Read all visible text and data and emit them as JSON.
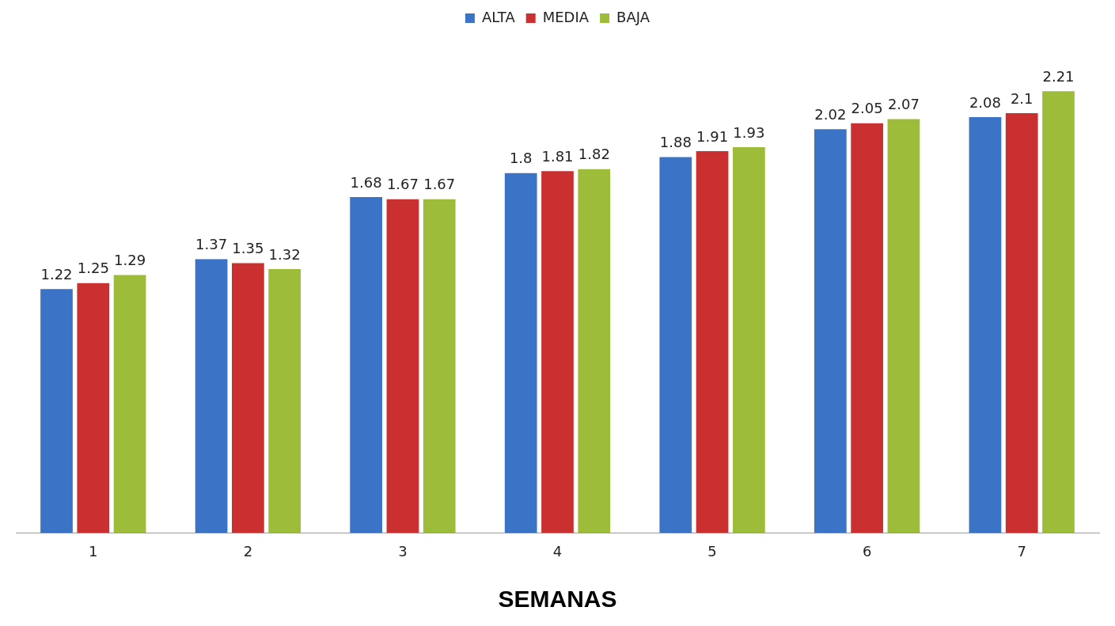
{
  "chart_data": {
    "type": "bar",
    "xlabel": "SEMANAS",
    "categories": [
      "1",
      "2",
      "3",
      "4",
      "5",
      "6",
      "7"
    ],
    "series": [
      {
        "name": "ALTA",
        "color": "#3b74c6",
        "values": [
          1.22,
          1.37,
          1.68,
          1.8,
          1.88,
          2.02,
          2.08
        ]
      },
      {
        "name": "MEDIA",
        "color": "#c9302f",
        "values": [
          1.25,
          1.35,
          1.67,
          1.81,
          1.91,
          2.05,
          2.1
        ]
      },
      {
        "name": "BAJA",
        "color": "#9cbc3a",
        "values": [
          1.29,
          1.32,
          1.67,
          1.82,
          1.93,
          2.07,
          2.21
        ]
      }
    ],
    "data_labels": true,
    "legend": "top",
    "grid": false
  }
}
